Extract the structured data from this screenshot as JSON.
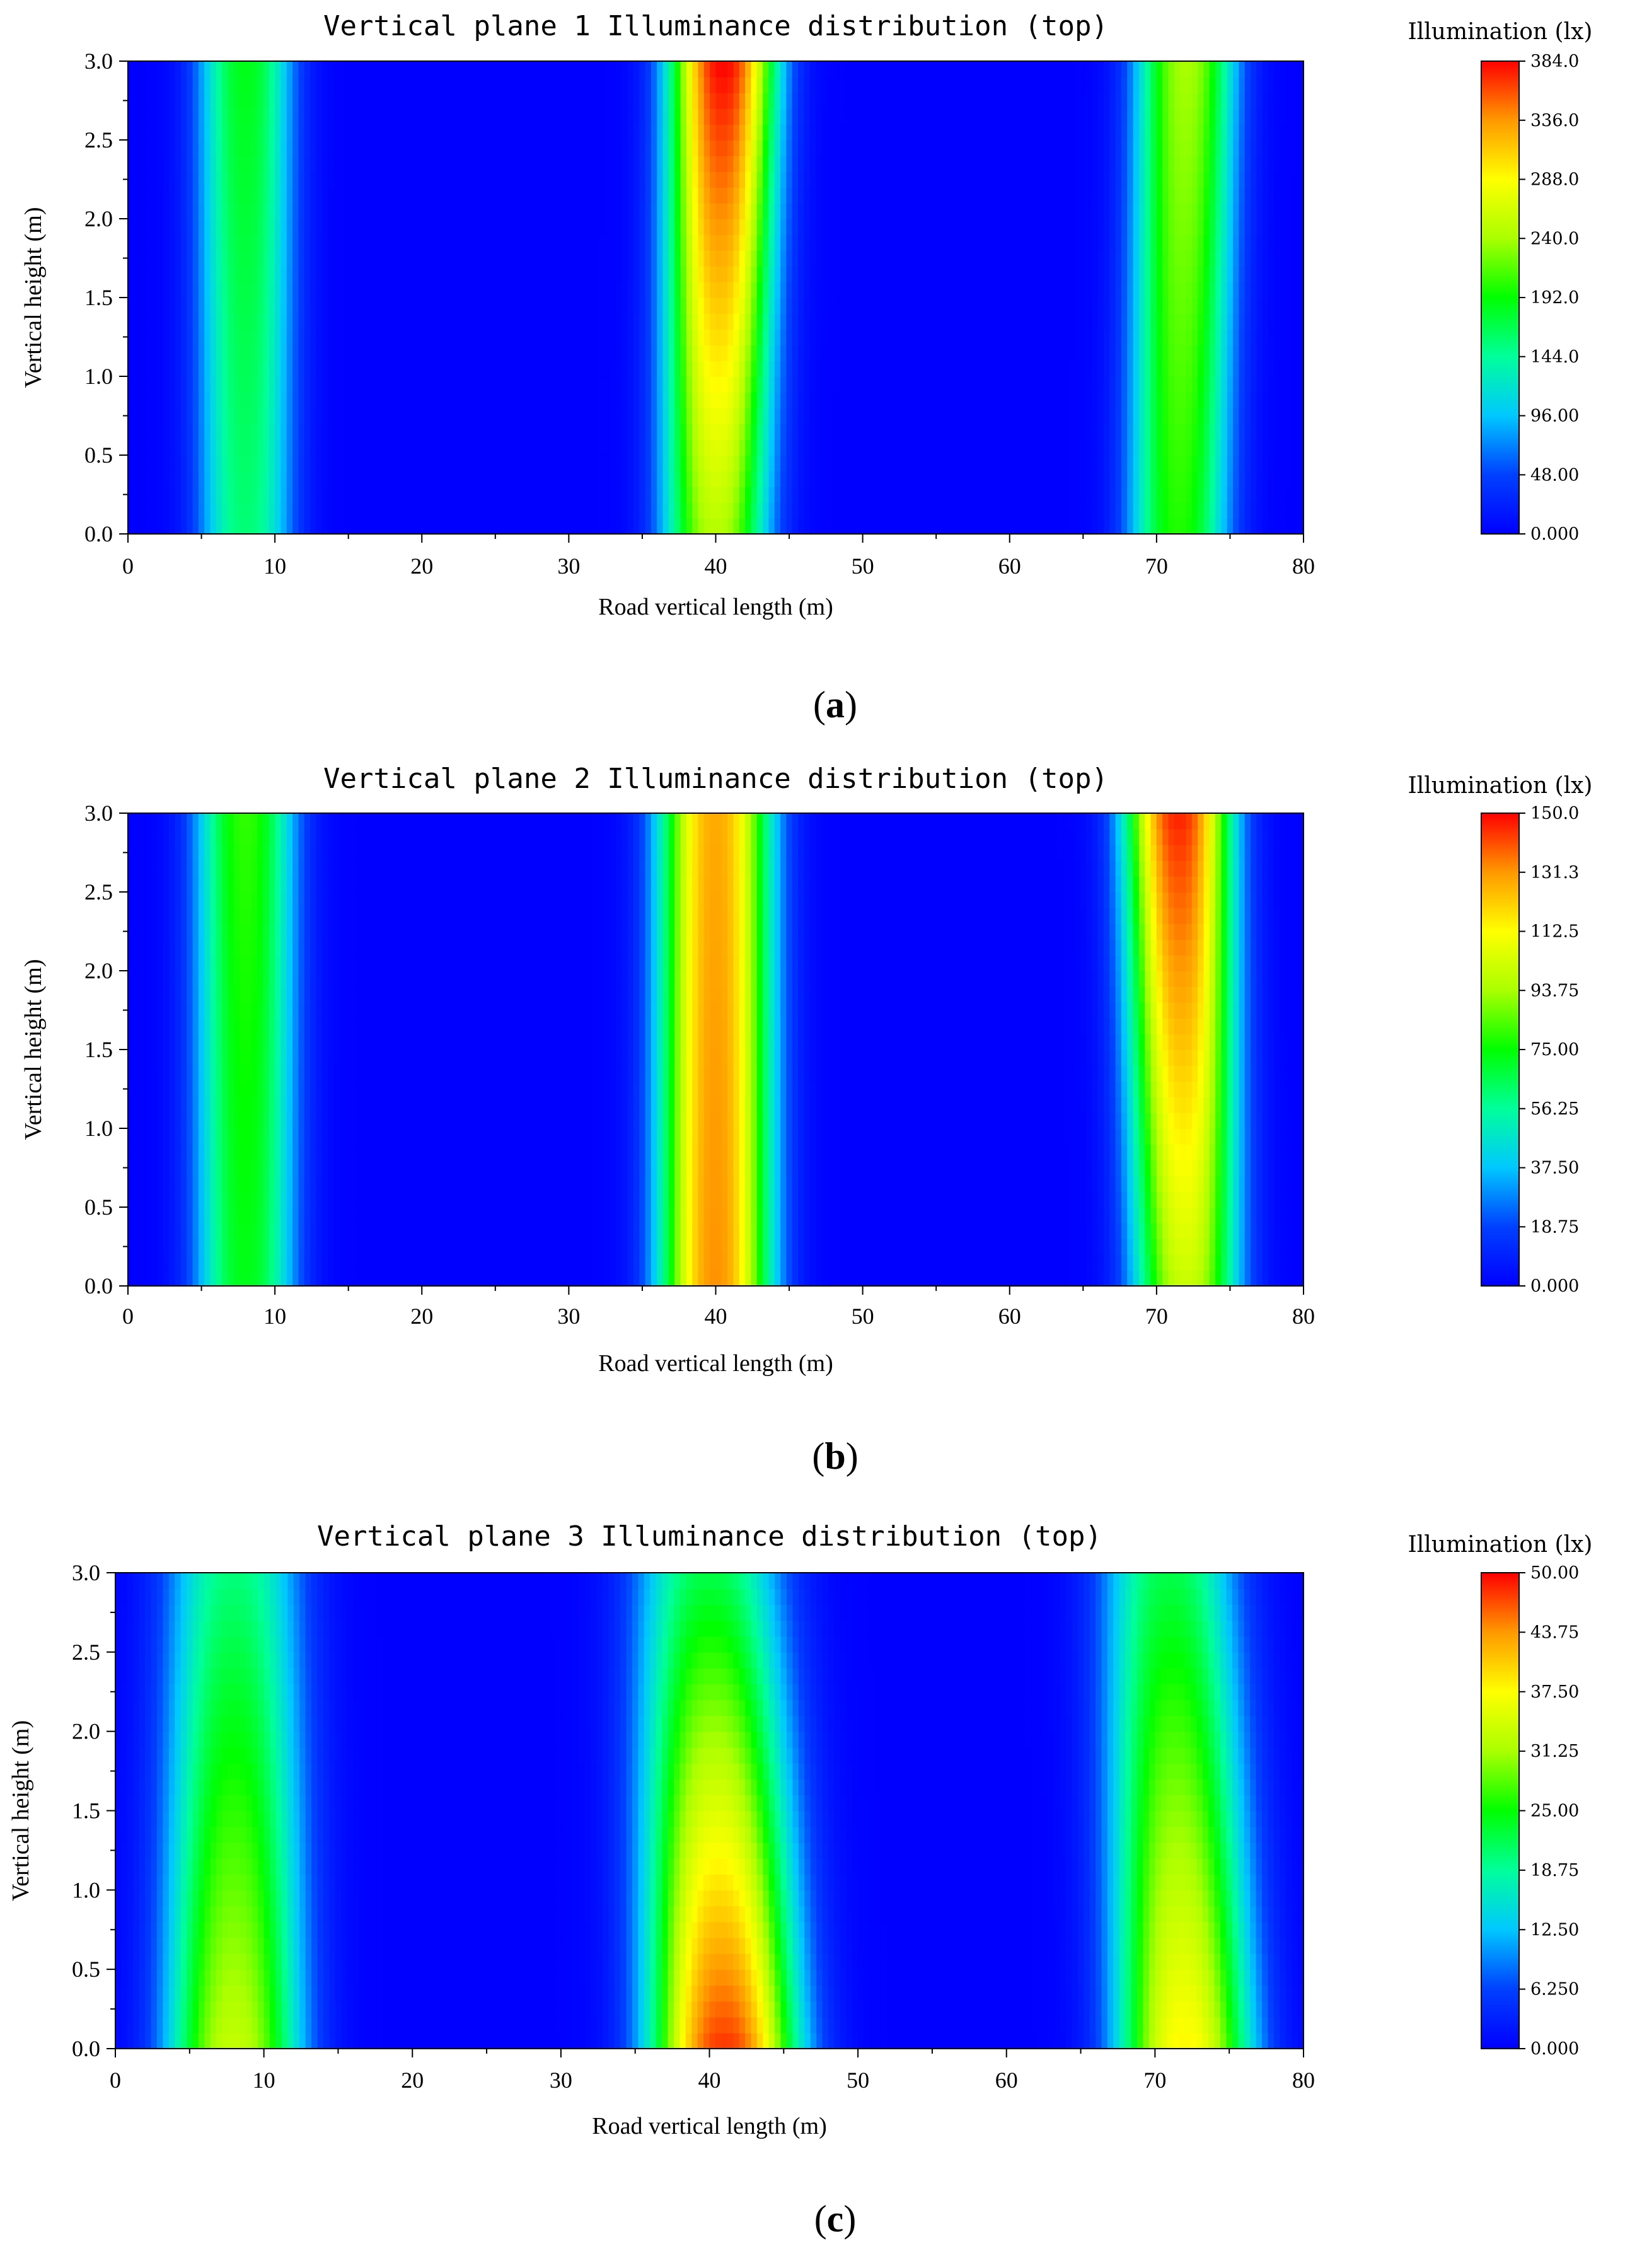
{
  "chart_data": [
    {
      "type": "heatmap",
      "caption": "(a)",
      "caption_letter": "a",
      "title": "Vertical plane 1 Illuminance distribution (top)",
      "xlabel": "Road vertical length (m)",
      "ylabel": "Vertical height (m)",
      "xlim": [
        0,
        80
      ],
      "ylim": [
        0,
        3
      ],
      "x_ticks": [
        "0",
        "10",
        "20",
        "30",
        "40",
        "50",
        "60",
        "70",
        "80"
      ],
      "y_ticks": [
        "0.0",
        "0.5",
        "1.0",
        "1.5",
        "2.0",
        "2.5",
        "3.0"
      ],
      "colorbar": {
        "title": "Illumination (lx)",
        "min": 0,
        "max": 384,
        "ticks": [
          "0.000",
          "48.00",
          "96.00",
          "144.0",
          "192.0",
          "240.0",
          "288.0",
          "336.0",
          "384.0"
        ]
      },
      "bands": [
        {
          "center_bottom": 8.0,
          "center_top": 8.0,
          "width": 8.5,
          "peak_bottom": 155,
          "peak_top": 185
        },
        {
          "center_bottom": 40.0,
          "center_top": 40.5,
          "width": 9.5,
          "peak_bottom": 245,
          "peak_top": 384
        },
        {
          "center_bottom": 71.5,
          "center_top": 72.0,
          "width": 9.0,
          "peak_bottom": 200,
          "peak_top": 240
        }
      ]
    },
    {
      "type": "heatmap",
      "caption": "(b)",
      "caption_letter": "b",
      "title": "Vertical plane 2 Illuminance distribution (top)",
      "xlabel": "Road vertical length (m)",
      "ylabel": "Vertical height (m)",
      "xlim": [
        0,
        80
      ],
      "ylim": [
        0,
        3
      ],
      "x_ticks": [
        "0",
        "10",
        "20",
        "30",
        "40",
        "50",
        "60",
        "70",
        "80"
      ],
      "y_ticks": [
        "0.0",
        "0.5",
        "1.0",
        "1.5",
        "2.0",
        "2.5",
        "3.0"
      ],
      "colorbar": {
        "title": "Illumination (lx)",
        "min": 0,
        "max": 150,
        "ticks": [
          "0.000",
          "18.75",
          "37.50",
          "56.25",
          "75.00",
          "93.75",
          "112.5",
          "131.3",
          "150.0"
        ]
      },
      "bands": [
        {
          "center_bottom": 8.0,
          "center_top": 8.0,
          "width": 9.0,
          "peak_bottom": 72,
          "peak_top": 80
        },
        {
          "center_bottom": 40.0,
          "center_top": 40.0,
          "width": 10.0,
          "peak_bottom": 132,
          "peak_top": 128
        },
        {
          "center_bottom": 72.0,
          "center_top": 71.5,
          "width": 9.5,
          "peak_bottom": 100,
          "peak_top": 146
        }
      ]
    },
    {
      "type": "heatmap",
      "caption": "(c)",
      "caption_letter": "c",
      "title": "Vertical plane 3 Illuminance distribution (top)",
      "xlabel": "Road vertical length (m)",
      "ylabel": "Vertical height (m)",
      "xlim": [
        0,
        80
      ],
      "ylim": [
        0,
        3
      ],
      "x_ticks": [
        "0",
        "10",
        "20",
        "30",
        "40",
        "50",
        "60",
        "70",
        "80"
      ],
      "y_ticks": [
        "0.0",
        "0.5",
        "1.0",
        "1.5",
        "2.0",
        "2.5",
        "3.0"
      ],
      "colorbar": {
        "title": "Illumination (lx)",
        "min": 0,
        "max": 50,
        "ticks": [
          "0.000",
          "6.250",
          "12.50",
          "18.75",
          "25.00",
          "31.25",
          "37.50",
          "43.75",
          "50.00"
        ]
      },
      "bands": [
        {
          "center_bottom": 8.0,
          "center_top": 8.0,
          "width": 12.0,
          "peak_bottom": 33,
          "peak_top": 20
        },
        {
          "center_bottom": 41.0,
          "center_top": 40.0,
          "width": 13.0,
          "peak_bottom": 48,
          "peak_top": 22
        },
        {
          "center_bottom": 72.0,
          "center_top": 71.0,
          "width": 12.0,
          "peak_bottom": 38,
          "peak_top": 22
        }
      ]
    }
  ]
}
